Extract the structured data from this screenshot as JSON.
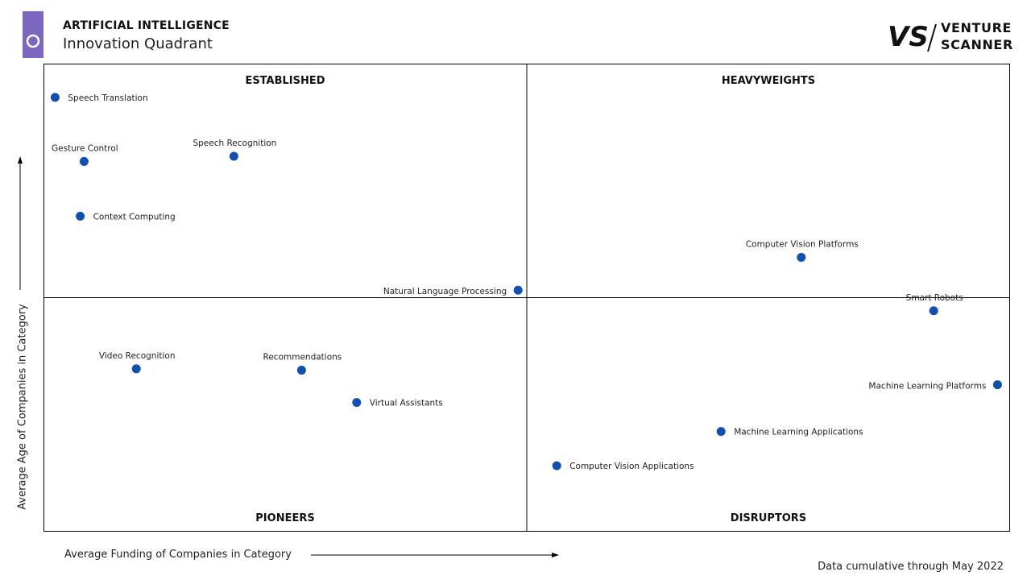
{
  "header": {
    "title": "ARTIFICIAL INTELLIGENCE",
    "subtitle": "Innovation Quadrant",
    "accent_color": "#7b66c0"
  },
  "brand": {
    "logo_mark": "VS",
    "line1": "VENTURE",
    "line2": "SCANNER"
  },
  "footnote": "Data cumulative through May 2022",
  "colors": {
    "point": "#1150b0",
    "frame": "#000000",
    "divider": "#000000"
  },
  "chart_data": {
    "type": "scatter",
    "title": "",
    "xlabel": "Average Funding of Companies in Category",
    "ylabel": "Average Age of Companies in Category",
    "xlim": [
      0,
      100
    ],
    "ylim": [
      0,
      100
    ],
    "grid": false,
    "legend": "none",
    "quadrants": [
      {
        "label": "ESTABLISHED",
        "position": "top-left"
      },
      {
        "label": "HEAVYWEIGHTS",
        "position": "top-right"
      },
      {
        "label": "PIONEERS",
        "position": "bottom-left"
      },
      {
        "label": "DISRUPTORS",
        "position": "bottom-right"
      }
    ],
    "points": [
      {
        "label": "Speech Translation",
        "x": 1.2,
        "y": 92.8,
        "label_side": "right"
      },
      {
        "label": "Gesture Control",
        "x": 4.2,
        "y": 79.1,
        "label_side": "above"
      },
      {
        "label": "Speech Recognition",
        "x": 19.7,
        "y": 80.2,
        "label_side": "above"
      },
      {
        "label": "Context Computing",
        "x": 3.8,
        "y": 67.4,
        "label_side": "right"
      },
      {
        "label": "Natural Language Processing",
        "x": 49.1,
        "y": 51.6,
        "label_side": "left"
      },
      {
        "label": "Video Recognition",
        "x": 9.6,
        "y": 34.8,
        "label_side": "above"
      },
      {
        "label": "Recommendations",
        "x": 26.7,
        "y": 34.5,
        "label_side": "above"
      },
      {
        "label": "Virtual Assistants",
        "x": 32.4,
        "y": 27.6,
        "label_side": "right"
      },
      {
        "label": "Computer Vision Platforms",
        "x": 78.4,
        "y": 58.6,
        "label_side": "above"
      },
      {
        "label": "Smart Robots",
        "x": 92.1,
        "y": 47.2,
        "label_side": "above"
      },
      {
        "label": "Machine Learning Platforms",
        "x": 98.7,
        "y": 31.4,
        "label_side": "left"
      },
      {
        "label": "Machine Learning Applications",
        "x": 70.1,
        "y": 21.4,
        "label_side": "right"
      },
      {
        "label": "Computer Vision Applications",
        "x": 53.1,
        "y": 14.1,
        "label_side": "right"
      }
    ]
  }
}
